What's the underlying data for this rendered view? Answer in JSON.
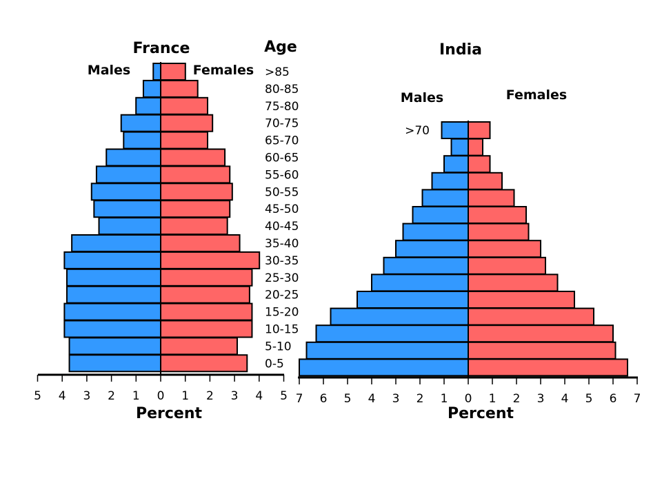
{
  "chart_data": [
    {
      "type": "bar",
      "title": "France",
      "center_label": "Age",
      "xlabel": "Percent",
      "series_labels": {
        "male": "Males",
        "female": "Females"
      },
      "categories": [
        "0-5",
        "5-10",
        "10-15",
        "15-20",
        "20-25",
        "25-30",
        "30-35",
        "35-40",
        "40-45",
        "45-50",
        "50-55",
        "55-60",
        "60-65",
        "65-70",
        "70-75",
        "75-80",
        "80-85",
        ">85"
      ],
      "series": [
        {
          "name": "Males",
          "values": [
            3.7,
            3.7,
            3.9,
            3.9,
            3.8,
            3.8,
            3.9,
            3.6,
            2.5,
            2.7,
            2.8,
            2.6,
            2.2,
            1.5,
            1.6,
            1.0,
            0.7,
            0.3
          ],
          "color": "#3399ff"
        },
        {
          "name": "Females",
          "values": [
            3.5,
            3.1,
            3.7,
            3.7,
            3.6,
            3.7,
            4.0,
            3.2,
            2.7,
            2.8,
            2.9,
            2.8,
            2.6,
            1.9,
            2.1,
            1.9,
            1.5,
            1.0
          ],
          "color": "#ff6666"
        }
      ],
      "xlim": [
        -5,
        5
      ],
      "tick_labels": [
        "5",
        "4",
        "3",
        "2",
        "1",
        "0",
        "1",
        "2",
        "3",
        "4",
        "5"
      ]
    },
    {
      "type": "bar",
      "title": "India",
      "xlabel": "Percent",
      "series_labels": {
        "male": "Males",
        "female": "Females"
      },
      "categories": [
        "0-5",
        "5-10",
        "10-15",
        "15-20",
        "20-25",
        "25-30",
        "30-35",
        "35-40",
        "40-45",
        "45-50",
        "50-55",
        "55-60",
        "60-65",
        "65-70",
        ">70"
      ],
      "category_labels_shown": [
        ">70"
      ],
      "series": [
        {
          "name": "Males",
          "values": [
            7.0,
            6.7,
            6.3,
            5.7,
            4.6,
            4.0,
            3.5,
            3.0,
            2.7,
            2.3,
            1.9,
            1.5,
            1.0,
            0.7,
            1.1
          ],
          "color": "#3399ff"
        },
        {
          "name": "Females",
          "values": [
            6.6,
            6.1,
            6.0,
            5.2,
            4.4,
            3.7,
            3.2,
            3.0,
            2.5,
            2.4,
            1.9,
            1.4,
            0.9,
            0.6,
            0.9
          ],
          "color": "#ff6666"
        }
      ],
      "xlim": [
        -7,
        7
      ],
      "tick_labels": [
        "7",
        "6",
        "5",
        "4",
        "3",
        "2",
        "1",
        "0",
        "1",
        "2",
        "3",
        "4",
        "5",
        "6",
        "7"
      ]
    }
  ]
}
